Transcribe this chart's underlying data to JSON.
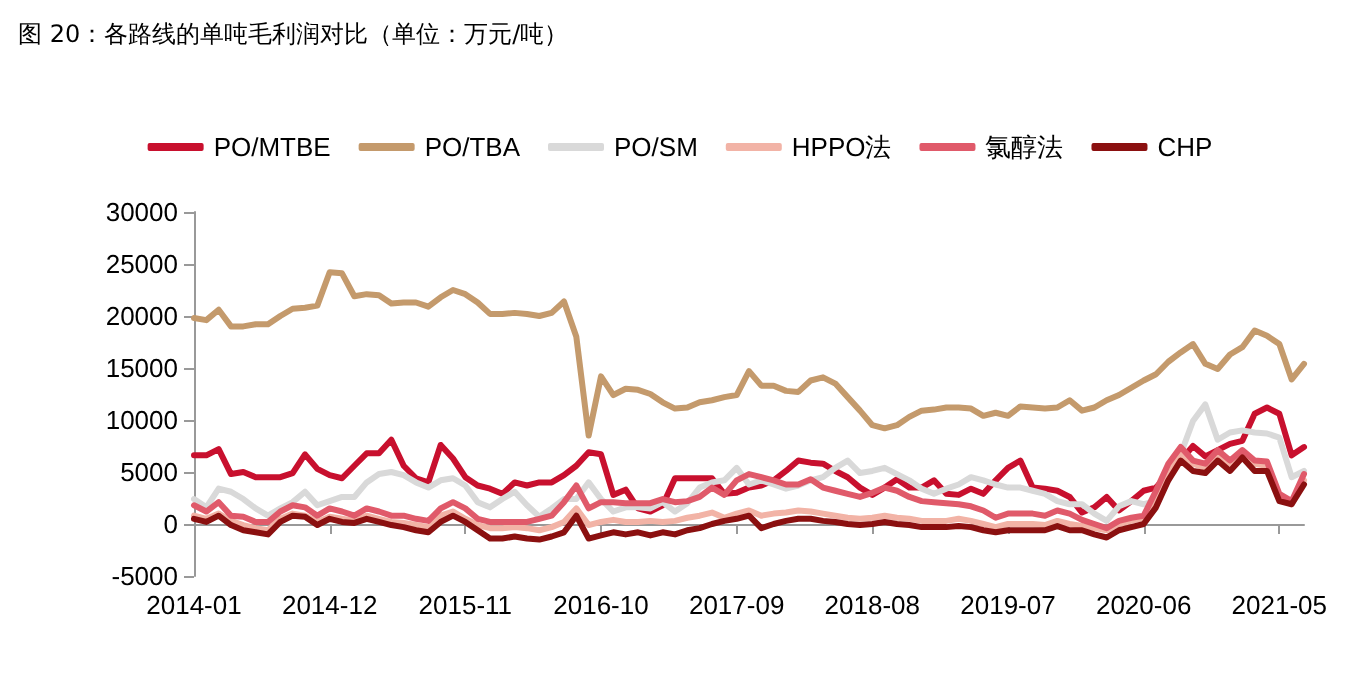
{
  "chart_data": {
    "type": "line",
    "title": "图 20：各路线的单吨毛利润对比（单位：万元/吨）",
    "categories": [
      "2014-01",
      null,
      null,
      null,
      null,
      null,
      null,
      null,
      null,
      null,
      null,
      "2014-12",
      null,
      null,
      null,
      null,
      null,
      null,
      null,
      null,
      null,
      null,
      "2015-11",
      null,
      null,
      null,
      null,
      null,
      null,
      null,
      null,
      null,
      null,
      "2016-10",
      null,
      null,
      null,
      null,
      null,
      null,
      null,
      null,
      null,
      null,
      "2017-09",
      null,
      null,
      null,
      null,
      null,
      null,
      null,
      null,
      null,
      null,
      "2018-08",
      null,
      null,
      null,
      null,
      null,
      null,
      null,
      null,
      null,
      null,
      "2019-07",
      null,
      null,
      null,
      null,
      null,
      null,
      null,
      null,
      null,
      null,
      "2020-06",
      null,
      null,
      null,
      null,
      null,
      null,
      null,
      null,
      null,
      null,
      "2021-05",
      null,
      null
    ],
    "series": [
      {
        "name": "PO/MTBE",
        "color": "#c8102e",
        "values": [
          6600,
          6600,
          7200,
          4800,
          5000,
          4500,
          4500,
          4500,
          4900,
          6700,
          5300,
          4700,
          4400,
          5600,
          6800,
          6800,
          8100,
          5600,
          4400,
          4000,
          7600,
          6300,
          4500,
          3700,
          3400,
          2900,
          4000,
          3700,
          4000,
          4000,
          4700,
          5600,
          6900,
          6700,
          2800,
          3300,
          1500,
          1200,
          1800,
          4400,
          4400,
          4400,
          4400,
          2900,
          3000,
          3500,
          3700,
          4200,
          5100,
          6100,
          5900,
          5800,
          5100,
          4500,
          3500,
          2800,
          3500,
          4300,
          3500,
          3500,
          4200,
          2900,
          2800,
          3400,
          2900,
          4200,
          5400,
          6100,
          3500,
          3400,
          3200,
          2600,
          1100,
          1600,
          2600,
          1300,
          2200,
          3200,
          3500,
          4800,
          6100,
          7500,
          6500,
          7100,
          7700,
          8000,
          10600,
          11200,
          10600,
          6600,
          7400
        ]
      },
      {
        "name": "PO/TBA",
        "color": "#c49a6c",
        "values": [
          19800,
          19600,
          20600,
          19000,
          19000,
          19200,
          19200,
          20000,
          20700,
          20800,
          21000,
          24200,
          24100,
          21900,
          22100,
          22000,
          21200,
          21300,
          21300,
          20900,
          21800,
          22500,
          22100,
          21300,
          20200,
          20200,
          20300,
          20200,
          20000,
          20300,
          21400,
          18000,
          8500,
          14200,
          12400,
          13000,
          12900,
          12500,
          11700,
          11100,
          11200,
          11700,
          11900,
          12200,
          12400,
          14700,
          13300,
          13300,
          12800,
          12700,
          13800,
          14100,
          13500,
          12200,
          10900,
          9500,
          9200,
          9500,
          10300,
          10900,
          11000,
          11200,
          11200,
          11100,
          10400,
          10700,
          10400,
          11300,
          11200,
          11100,
          11200,
          11900,
          10900,
          11200,
          11900,
          12400,
          13100,
          13800,
          14400,
          15600,
          16500,
          17300,
          15400,
          14900,
          16300,
          17000,
          18600,
          18100,
          17300,
          13900,
          15400
        ]
      },
      {
        "name": "PO/SM",
        "color": "#d9d9d9",
        "values": [
          2400,
          1600,
          3400,
          3100,
          2400,
          1500,
          800,
          1500,
          2100,
          3100,
          1800,
          2200,
          2600,
          2600,
          4000,
          4800,
          5000,
          4700,
          4000,
          3500,
          4200,
          4400,
          3700,
          2100,
          1600,
          2400,
          3100,
          1800,
          700,
          1500,
          2400,
          2400,
          4000,
          2400,
          1200,
          1600,
          1600,
          1500,
          2100,
          1200,
          2000,
          3500,
          4000,
          4200,
          5400,
          3800,
          4200,
          3800,
          3400,
          3700,
          4200,
          4500,
          5400,
          6100,
          4900,
          5100,
          5400,
          4800,
          4200,
          3400,
          2900,
          3400,
          3800,
          4500,
          4200,
          3800,
          3500,
          3500,
          3200,
          2900,
          2200,
          1900,
          1900,
          1000,
          300,
          1700,
          2200,
          1900,
          2200,
          4200,
          6700,
          9900,
          11500,
          8100,
          8800,
          9000,
          8800,
          8700,
          8300,
          4500,
          5100
        ]
      },
      {
        "name": "HPPO法",
        "color": "#f2b3a6",
        "values": [
          800,
          500,
          1000,
          300,
          -100,
          -400,
          -600,
          500,
          1000,
          800,
          200,
          700,
          500,
          300,
          800,
          500,
          200,
          100,
          -100,
          -300,
          800,
          1200,
          500,
          -100,
          -400,
          -400,
          -300,
          -400,
          -600,
          -300,
          200,
          1500,
          -100,
          200,
          400,
          200,
          200,
          300,
          200,
          300,
          600,
          800,
          1100,
          600,
          1000,
          1300,
          800,
          1000,
          1100,
          1300,
          1200,
          1000,
          800,
          600,
          500,
          600,
          800,
          600,
          500,
          300,
          300,
          300,
          500,
          300,
          0,
          -300,
          0,
          0,
          0,
          -100,
          300,
          0,
          -200,
          -400,
          -600,
          0,
          300,
          600,
          2200,
          4800,
          6700,
          5800,
          5400,
          6700,
          5800,
          6700,
          5800,
          5600,
          2600,
          1900,
          4200
        ]
      },
      {
        "name": "氯醇法",
        "color": "#e05a6a",
        "values": [
          1800,
          1200,
          2100,
          800,
          700,
          200,
          200,
          1200,
          1800,
          1600,
          800,
          1500,
          1200,
          800,
          1500,
          1200,
          800,
          800,
          500,
          300,
          1500,
          2100,
          1500,
          500,
          200,
          200,
          200,
          200,
          500,
          800,
          2100,
          3700,
          1500,
          2100,
          2100,
          2000,
          2000,
          2000,
          2400,
          2100,
          2200,
          2600,
          3500,
          2800,
          4200,
          4800,
          4500,
          4200,
          3800,
          3800,
          4300,
          3500,
          3200,
          2900,
          2600,
          3000,
          3500,
          3200,
          2600,
          2200,
          2100,
          2000,
          1900,
          1700,
          1300,
          600,
          1000,
          1000,
          1000,
          800,
          1300,
          1000,
          400,
          0,
          -400,
          300,
          600,
          800,
          3200,
          5800,
          7400,
          6100,
          5800,
          7100,
          6100,
          7100,
          6100,
          6000,
          2900,
          2200,
          4800
        ]
      },
      {
        "name": "CHP",
        "color": "#8b1010",
        "values": [
          500,
          200,
          800,
          -100,
          -600,
          -800,
          -1000,
          200,
          800,
          700,
          -100,
          500,
          200,
          100,
          500,
          200,
          -100,
          -300,
          -600,
          -800,
          200,
          800,
          200,
          -600,
          -1400,
          -1400,
          -1200,
          -1400,
          -1500,
          -1200,
          -800,
          800,
          -1400,
          -1100,
          -800,
          -1000,
          -800,
          -1100,
          -800,
          -1000,
          -600,
          -400,
          0,
          300,
          500,
          800,
          -400,
          0,
          300,
          500,
          500,
          300,
          200,
          0,
          -100,
          0,
          200,
          0,
          -100,
          -300,
          -300,
          -300,
          -200,
          -300,
          -600,
          -800,
          -600,
          -600,
          -600,
          -600,
          -200,
          -600,
          -600,
          -1000,
          -1300,
          -600,
          -300,
          0,
          1600,
          4200,
          6100,
          5100,
          4900,
          6100,
          5100,
          6400,
          5100,
          5100,
          2200,
          1900,
          3800
        ]
      }
    ],
    "ylim": [
      -5000,
      30000
    ],
    "yticks": [
      -5000,
      0,
      5000,
      10000,
      15000,
      20000,
      25000,
      30000
    ],
    "legend": "top",
    "marker": "none",
    "grid": false
  }
}
